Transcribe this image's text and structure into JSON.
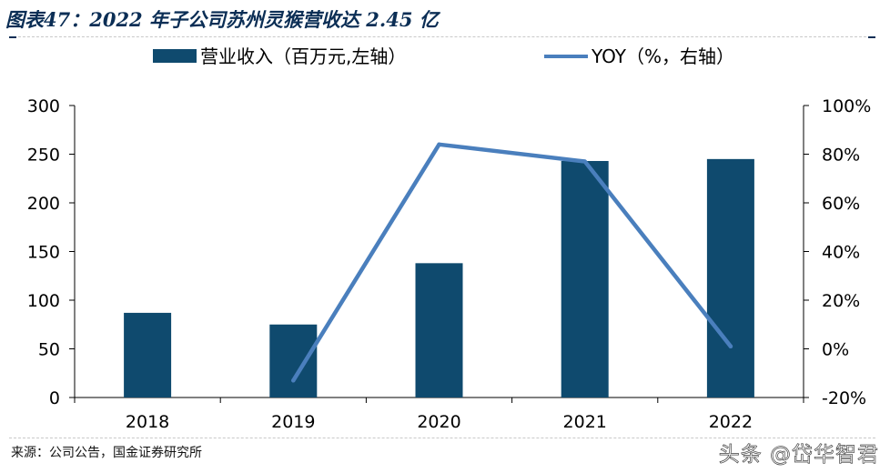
{
  "title": "图表47：2022 年子公司苏州灵猴营收达 2.45 亿",
  "source": "来源：公司公告，国金证券研究所",
  "watermark": "头条 @岱华智君",
  "colors": {
    "bar": "#0f4a6e",
    "line": "#4a7fbd",
    "axis": "#000000",
    "title": "#0b2e55"
  },
  "chart_data": {
    "type": "bar",
    "categories": [
      "2018",
      "2019",
      "2020",
      "2021",
      "2022"
    ],
    "series": [
      {
        "name": "营业收入（百万元,左轴）",
        "type": "bar",
        "axis": "left",
        "values": [
          87,
          75,
          138,
          243,
          245
        ]
      },
      {
        "name": "YOY（%，右轴）",
        "type": "line",
        "axis": "right",
        "values": [
          null,
          -13,
          84,
          77,
          1
        ]
      }
    ],
    "y_left": {
      "ylim": [
        0,
        300
      ],
      "ticks": [
        "0",
        "50",
        "100",
        "150",
        "200",
        "250",
        "300"
      ],
      "tick_values": [
        0,
        50,
        100,
        150,
        200,
        250,
        300
      ]
    },
    "y_right": {
      "ylim": [
        -20,
        100
      ],
      "ticks": [
        "-20%",
        "0%",
        "20%",
        "40%",
        "60%",
        "80%",
        "100%"
      ],
      "tick_values": [
        -20,
        0,
        20,
        40,
        60,
        80,
        100
      ]
    },
    "grid": false,
    "legend_position": "top"
  }
}
